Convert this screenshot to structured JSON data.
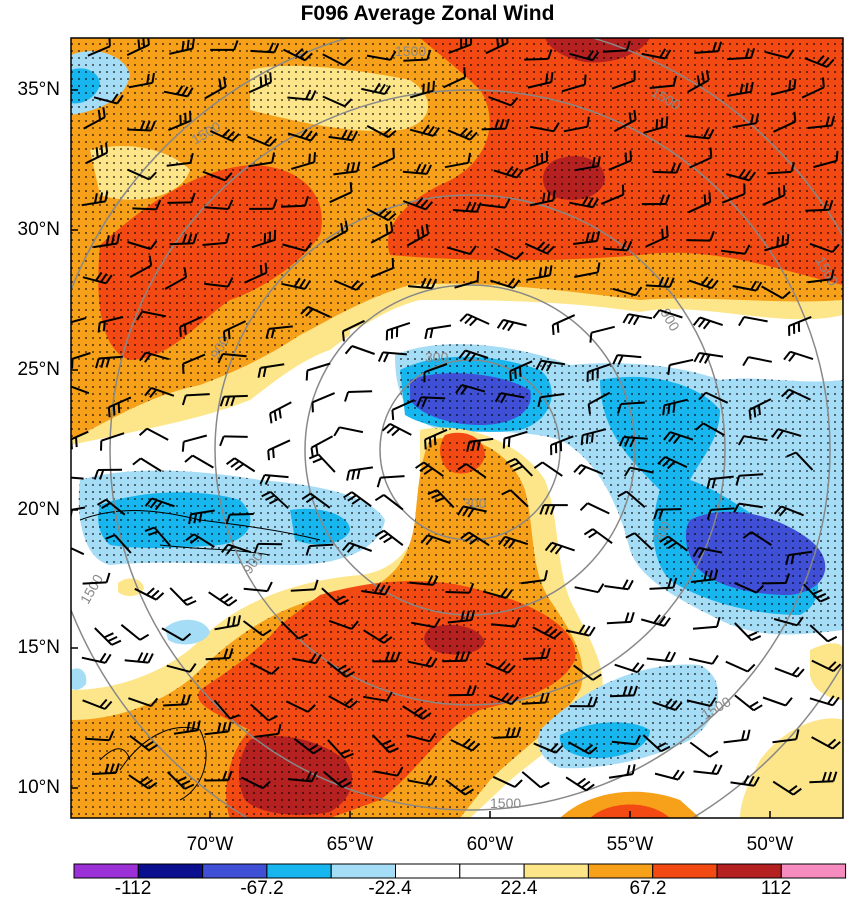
{
  "title": "F096 Average Zonal Wind",
  "latitude_labels": [
    "35°N",
    "30°N",
    "25°N",
    "20°N",
    "15°N",
    "10°N"
  ],
  "longitude_labels": [
    "70°W",
    "65°W",
    "60°W",
    "55°W",
    "50°W"
  ],
  "colorbar": {
    "colors": [
      "#9b30d6",
      "#0a0f8f",
      "#3f4fd6",
      "#17b6ef",
      "#a6ddf6",
      "#ffffff",
      "#ffffff",
      "#fde68a",
      "#f7a11a",
      "#f24a12",
      "#b52020",
      "#f58bbf"
    ],
    "tick_labels": [
      "-112",
      "-67.2",
      "-22.4",
      "22.4",
      "67.2",
      "112"
    ]
  },
  "contour_labels": [
    "1500",
    "1500",
    "1500",
    "1500",
    "1500",
    "1500",
    "900",
    "900",
    "900",
    "300",
    "300",
    "300",
    "1500"
  ]
}
